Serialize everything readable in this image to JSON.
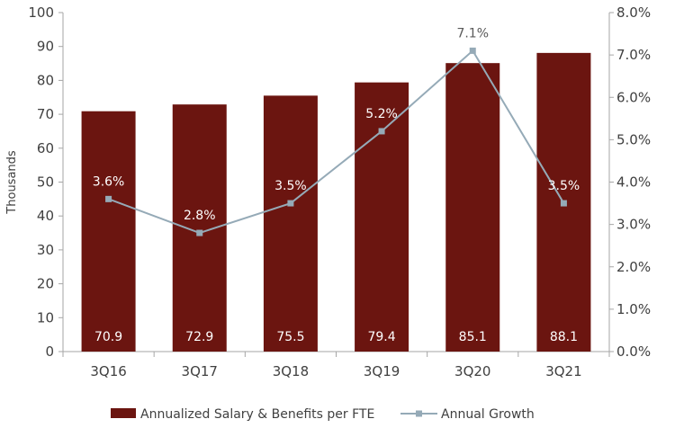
{
  "chart_data": {
    "type": "bar",
    "categories": [
      "3Q16",
      "3Q17",
      "3Q18",
      "3Q19",
      "3Q20",
      "3Q21"
    ],
    "ylabel": "Thousands",
    "ylim": [
      0,
      100
    ],
    "y_ticks": [
      "0",
      "10",
      "20",
      "30",
      "40",
      "50",
      "60",
      "70",
      "80",
      "90",
      "100"
    ],
    "y2lim": [
      0,
      8
    ],
    "y2_ticks": [
      "0.0%",
      "1.0%",
      "2.0%",
      "3.0%",
      "4.0%",
      "5.0%",
      "6.0%",
      "7.0%",
      "8.0%"
    ],
    "grid": false,
    "legend_position": "bottom",
    "series": [
      {
        "name": "Annualized Salary & Benefits per FTE",
        "type": "bar",
        "axis": "left",
        "color": "#6b1510",
        "values": [
          70.9,
          72.9,
          75.5,
          79.4,
          85.1,
          88.1
        ],
        "labels": [
          "70.9",
          "72.9",
          "75.5",
          "79.4",
          "85.1",
          "88.1"
        ]
      },
      {
        "name": "Annual Growth",
        "type": "line",
        "axis": "right",
        "color": "#95aab7",
        "values": [
          3.6,
          2.8,
          3.5,
          5.2,
          7.1,
          3.5
        ],
        "labels": [
          "3.6%",
          "2.8%",
          "3.5%",
          "5.2%",
          "7.1%",
          "3.5%"
        ]
      }
    ]
  }
}
